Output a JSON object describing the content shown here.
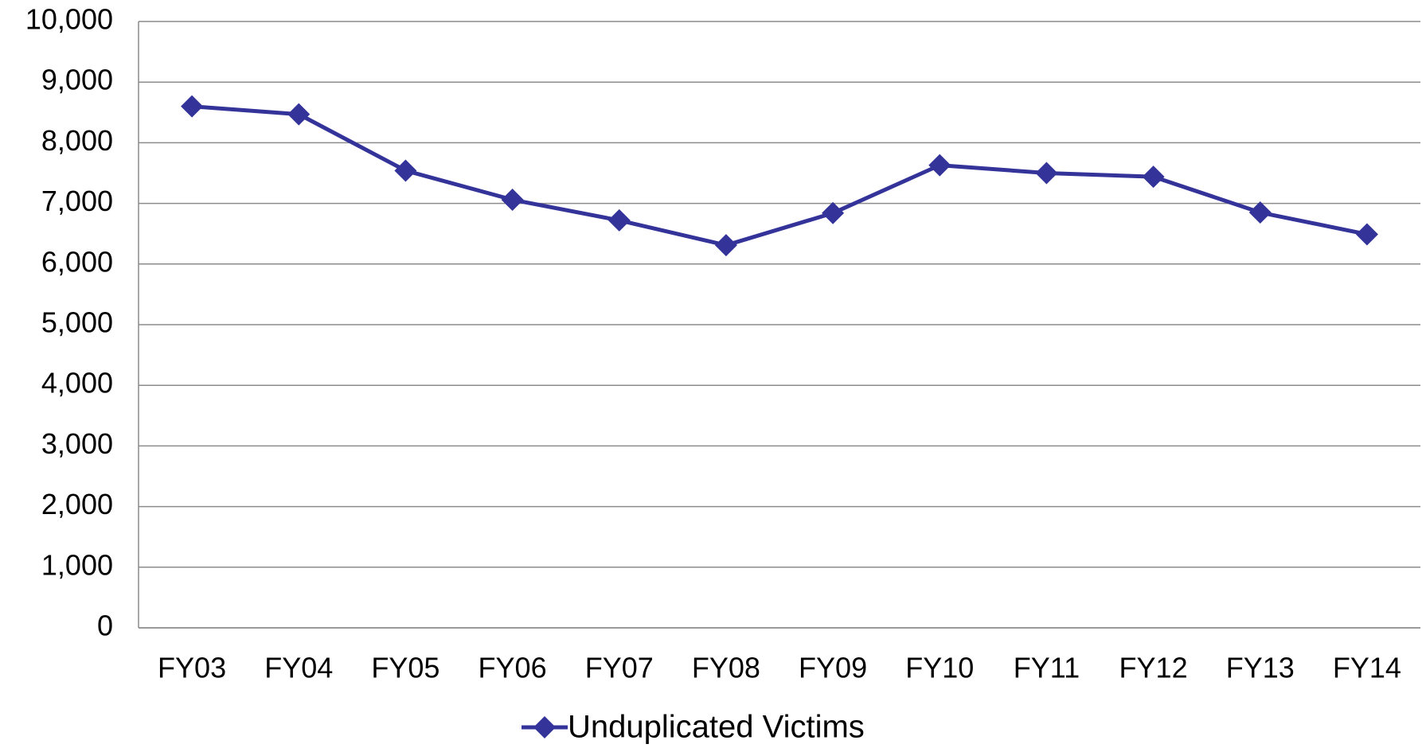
{
  "chart_data": {
    "type": "line",
    "categories": [
      "FY03",
      "FY04",
      "FY05",
      "FY06",
      "FY07",
      "FY08",
      "FY09",
      "FY10",
      "FY11",
      "FY12",
      "FY13",
      "FY14"
    ],
    "series": [
      {
        "name": "Unduplicated Victims",
        "color": "#333399",
        "values": [
          8600,
          8470,
          7540,
          7060,
          6720,
          6310,
          6840,
          7630,
          7500,
          7440,
          6850,
          6490
        ]
      }
    ],
    "ylim": [
      0,
      10000
    ],
    "yticks": [
      0,
      {
        "value": 1000,
        "label": "1,000"
      },
      {
        "value": 2000,
        "label": "2,000"
      },
      {
        "value": 3000,
        "label": "3,000"
      },
      {
        "value": 4000,
        "label": "4,000"
      },
      {
        "value": 5000,
        "label": "5,000"
      },
      {
        "value": 6000,
        "label": "6,000"
      },
      {
        "value": 7000,
        "label": "7,000"
      },
      {
        "value": 8000,
        "label": "8,000"
      },
      {
        "value": 9000,
        "label": "9,000"
      },
      {
        "value": 10000,
        "label": "10,000"
      }
    ],
    "grid": true,
    "legend": "bottom"
  }
}
